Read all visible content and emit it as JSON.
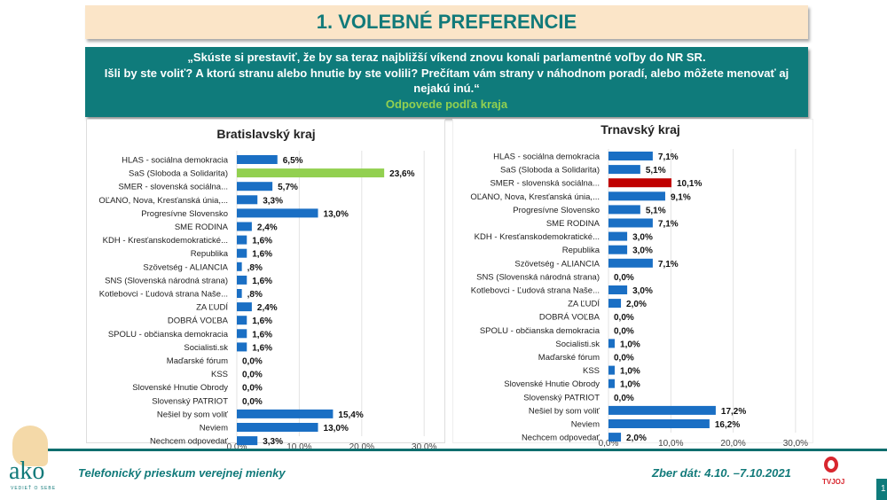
{
  "header": {
    "title": "1. VOLEBNÉ PREFERENCIE"
  },
  "question": {
    "line1": "„Skúste si prestaviť, že by sa teraz najbližší víkend znovu konali parlamentné voľby do NR SR.",
    "line2": "Išli by ste voliť? A ktorú stranu alebo hnutie by ste volili? Prečítam vám strany v náhodnom poradí, alebo môžete menovať aj nejakú inú.“",
    "subtitle": "Odpovede podľa kraja"
  },
  "footer": {
    "left": "Telefonický prieskum verejnej mienky",
    "right": "Zber dát: 4.10. –7.10.2021",
    "page": "1",
    "logo_left": "ako",
    "logo_left_tagline": "VEDIEŤ O SEBE",
    "logo_right": "TVJOJ"
  },
  "colors": {
    "bar": "#1a6fc4",
    "sas": "#92d050",
    "smer": "#c00000",
    "teal": "#0f7b7b"
  },
  "chart_data": [
    {
      "type": "bar",
      "orientation": "horizontal",
      "title": "Bratislavský kraj",
      "categories": [
        "HLAS - sociálna demokracia",
        "SaS (Sloboda a Solidarita)",
        "SMER - slovenská sociálna...",
        "OĽANO, Nova, Kresťanská únia,...",
        "Progresívne Slovensko",
        "SME RODINA",
        "KDH - Kresťanskodemokratické...",
        "Republika",
        "Szövetség - ALIANCIA",
        "SNS (Slovenská národná strana)",
        "Kotlebovci - Ľudová strana Naše...",
        "ZA ĽUDÍ",
        "DOBRÁ VOĽBA",
        "SPOLU - občianska demokracia",
        "Socialisti.sk",
        "Maďarské fórum",
        "KSS",
        "Slovenské Hnutie Obrody",
        "Slovenský PATRIOT",
        "Nešiel by som voliť",
        "Neviem",
        "Nechcem odpovedať"
      ],
      "values": [
        6.5,
        23.6,
        5.7,
        3.3,
        13.0,
        2.4,
        1.6,
        1.6,
        0.8,
        1.6,
        0.8,
        2.4,
        1.6,
        1.6,
        1.6,
        0,
        0,
        0,
        0,
        15.4,
        13.0,
        3.3
      ],
      "data_labels": [
        "6,5%",
        "23,6%",
        "5,7%",
        "3,3%",
        "13,0%",
        "2,4%",
        "1,6%",
        "1,6%",
        ",8%",
        "1,6%",
        ",8%",
        "2,4%",
        "1,6%",
        "1,6%",
        "1,6%",
        "0,0%",
        "0,0%",
        "0,0%",
        "0,0%",
        "15,4%",
        "13,0%",
        "3,3%"
      ],
      "highlight": {
        "index": 1,
        "color": "#92d050"
      },
      "xlim": [
        0,
        30
      ],
      "xticks": [
        "0,0%",
        "10,0%",
        "20,0%",
        "30,0%"
      ],
      "grid": true
    },
    {
      "type": "bar",
      "orientation": "horizontal",
      "title": "Trnavský kraj",
      "categories": [
        "HLAS - sociálna demokracia",
        "SaS (Sloboda a Solidarita)",
        "SMER - slovenská sociálna...",
        "OĽANO, Nova, Kresťanská únia,...",
        "Progresívne Slovensko",
        "SME RODINA",
        "KDH - Kresťanskodemokratické...",
        "Republika",
        "Szövetség - ALIANCIA",
        "SNS (Slovenská národná strana)",
        "Kotlebovci - Ľudová strana Naše...",
        "ZA ĽUDÍ",
        "DOBRÁ VOĽBA",
        "SPOLU - občianska demokracia",
        "Socialisti.sk",
        "Maďarské fórum",
        "KSS",
        "Slovenské Hnutie Obrody",
        "Slovenský PATRIOT",
        "Nešiel by som voliť",
        "Neviem",
        "Nechcem odpovedať"
      ],
      "values": [
        7.1,
        5.1,
        10.1,
        9.1,
        5.1,
        7.1,
        3.0,
        3.0,
        7.1,
        0,
        3.0,
        2.0,
        0,
        0,
        1.0,
        0,
        1.0,
        1.0,
        0,
        17.2,
        16.2,
        2.0
      ],
      "data_labels": [
        "7,1%",
        "5,1%",
        "10,1%",
        "9,1%",
        "5,1%",
        "7,1%",
        "3,0%",
        "3,0%",
        "7,1%",
        "0,0%",
        "3,0%",
        "2,0%",
        "0,0%",
        "0,0%",
        "1,0%",
        "0,0%",
        "1,0%",
        "1,0%",
        "0,0%",
        "17,2%",
        "16,2%",
        "2,0%"
      ],
      "highlight": {
        "index": 2,
        "color": "#c00000"
      },
      "xlim": [
        0,
        30
      ],
      "xticks": [
        "0,0%",
        "10,0%",
        "20,0%",
        "30,0%"
      ],
      "grid": true
    }
  ]
}
